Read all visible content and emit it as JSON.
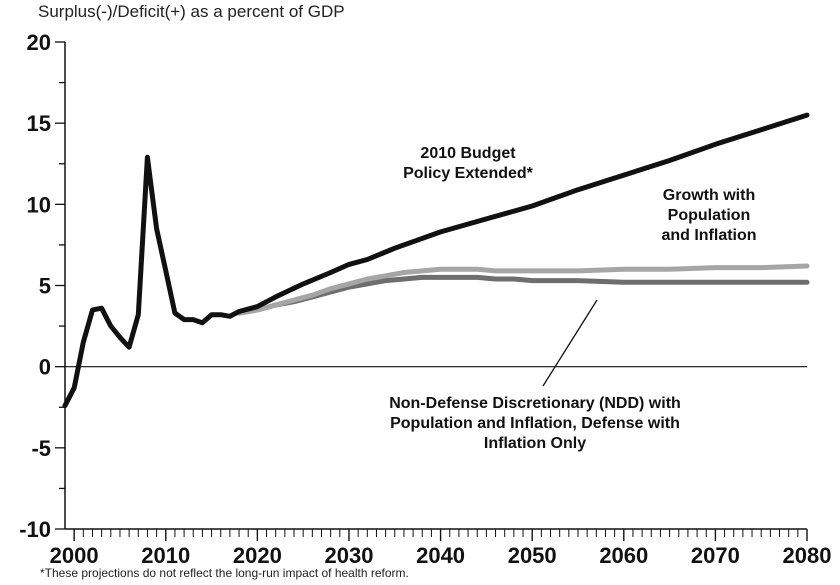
{
  "chart_data": {
    "type": "line",
    "title": "",
    "ylabel": "Surplus(-)/Deficit(+) as a percent of GDP",
    "xlabel": "",
    "xlim": [
      1999,
      2080
    ],
    "ylim": [
      -10,
      20
    ],
    "x_ticks": [
      "2000",
      "2010",
      "2020",
      "2030",
      "2040",
      "2050",
      "2060",
      "2070",
      "2080"
    ],
    "x_tick_values": [
      2000,
      2010,
      2020,
      2030,
      2040,
      2050,
      2060,
      2070,
      2080
    ],
    "y_ticks": [
      "20",
      "15",
      "10",
      "5",
      "0",
      "-5",
      "-10"
    ],
    "y_tick_values": [
      20,
      15,
      10,
      5,
      0,
      -5,
      -10
    ],
    "grid": false,
    "footnote": "*These projections do not reflect the long-run impact of health reform.",
    "series": [
      {
        "name": "Non-Defense Discretionary (NDD) with Population and Inflation, Defense with Inflation Only",
        "color": "#6e6e6e",
        "x": [
          2018,
          2020,
          2022,
          2024,
          2026,
          2028,
          2030,
          2032,
          2034,
          2036,
          2038,
          2040,
          2042,
          2044,
          2046,
          2048,
          2050,
          2055,
          2060,
          2065,
          2070,
          2075,
          2080
        ],
        "y": [
          3.3,
          3.5,
          3.8,
          4.0,
          4.3,
          4.6,
          4.9,
          5.1,
          5.3,
          5.4,
          5.5,
          5.5,
          5.5,
          5.5,
          5.4,
          5.4,
          5.3,
          5.3,
          5.2,
          5.2,
          5.2,
          5.2,
          5.2
        ]
      },
      {
        "name": "Growth with Population and Inflation",
        "color": "#a6a6a6",
        "x": [
          2018,
          2020,
          2022,
          2024,
          2026,
          2028,
          2030,
          2032,
          2034,
          2036,
          2038,
          2040,
          2042,
          2044,
          2046,
          2048,
          2050,
          2055,
          2060,
          2065,
          2070,
          2075,
          2080
        ],
        "y": [
          3.3,
          3.5,
          3.8,
          4.1,
          4.4,
          4.8,
          5.1,
          5.4,
          5.6,
          5.8,
          5.9,
          6.0,
          6.0,
          6.0,
          5.9,
          5.9,
          5.9,
          5.9,
          6.0,
          6.0,
          6.1,
          6.1,
          6.2
        ]
      },
      {
        "name": "2010 Budget Policy Extended*",
        "color": "#111111",
        "x": [
          1999,
          2000,
          2001,
          2002,
          2003,
          2004,
          2005,
          2006,
          2007,
          2008,
          2009,
          2010,
          2011,
          2012,
          2013,
          2014,
          2015,
          2016,
          2017,
          2018,
          2020,
          2022,
          2025,
          2028,
          2030,
          2032,
          2035,
          2040,
          2045,
          2050,
          2055,
          2060,
          2065,
          2070,
          2075,
          2080
        ],
        "y": [
          -2.4,
          -1.3,
          1.5,
          3.5,
          3.6,
          2.5,
          1.8,
          1.2,
          3.2,
          12.9,
          8.5,
          5.9,
          3.3,
          2.9,
          2.9,
          2.7,
          3.2,
          3.2,
          3.1,
          3.4,
          3.7,
          4.3,
          5.1,
          5.8,
          6.3,
          6.6,
          7.3,
          8.3,
          9.1,
          9.9,
          10.9,
          11.8,
          12.7,
          13.7,
          14.6,
          15.5
        ]
      }
    ],
    "annotations": {
      "policy": [
        "2010 Budget",
        "Policy Extended*"
      ],
      "growth": [
        "Growth with",
        "Population",
        "and Inflation"
      ],
      "ndd": [
        "Non-Defense Discretionary (NDD) with",
        "Population and Inflation, Defense with",
        "Inflation Only"
      ]
    }
  }
}
